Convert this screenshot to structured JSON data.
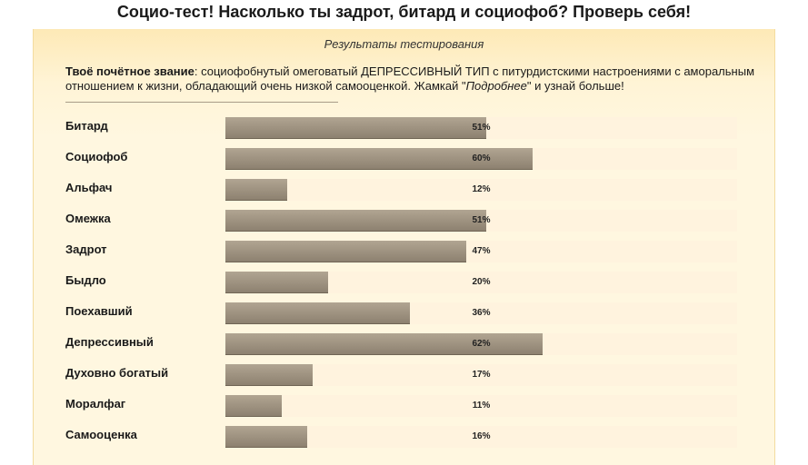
{
  "page": {
    "title": "Социо-тест! Насколько ты задрот, битард и социофоб? Проверь себя!"
  },
  "results": {
    "subtitle": "Результаты тестирования",
    "rank_label": "Твоё почётное звание",
    "rank_text_main": ": социофобнутый омеговатый ДЕПРЕССИВНЫЙ ТИП с питурдистскими настроениями с аморальным отношением к жизни, обладающий очень низкой самооценкой. Жамкай \"",
    "rank_more": "Подробнее",
    "rank_text_end": "\" и узнай больше!",
    "scores": [
      {
        "label": "Битард",
        "value": 51,
        "display": "51%"
      },
      {
        "label": "Социофоб",
        "value": 60,
        "display": "60%"
      },
      {
        "label": "Альфач",
        "value": 12,
        "display": "12%"
      },
      {
        "label": "Омежка",
        "value": 51,
        "display": "51%"
      },
      {
        "label": "Задрот",
        "value": 47,
        "display": "47%"
      },
      {
        "label": "Быдло",
        "value": 20,
        "display": "20%"
      },
      {
        "label": "Поехавший",
        "value": 36,
        "display": "36%"
      },
      {
        "label": "Депрессивный",
        "value": 62,
        "display": "62%"
      },
      {
        "label": "Духовно богатый",
        "value": 17,
        "display": "17%"
      },
      {
        "label": "Моралфаг",
        "value": 11,
        "display": "11%"
      },
      {
        "label": "Самооценка",
        "value": 16,
        "display": "16%"
      }
    ]
  },
  "colors": {
    "panel_bg": "#fff7e0",
    "bar_fill": "#9a8e7c",
    "bar_track": "#fff3de"
  }
}
